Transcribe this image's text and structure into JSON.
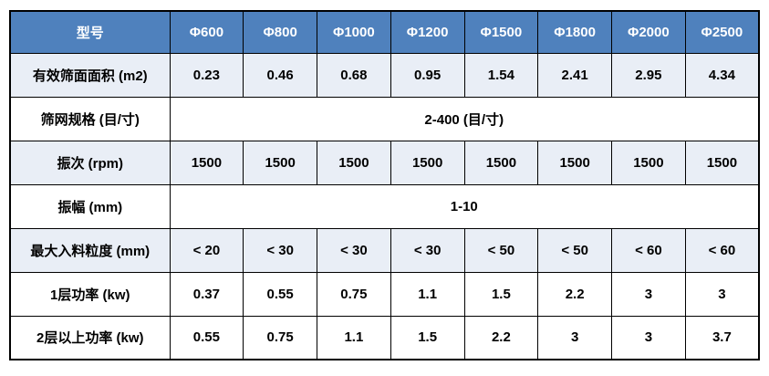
{
  "table": {
    "colors": {
      "header_bg": "#4f81bd",
      "header_text": "#ffffff",
      "shaded_row_bg": "#e9eef6",
      "row_bg": "#ffffff",
      "border": "#000000",
      "text": "#000000"
    },
    "header": {
      "model_label": "型号",
      "models": [
        "Φ600",
        "Φ800",
        "Φ1000",
        "Φ1200",
        "Φ1500",
        "Φ1800",
        "Φ2000",
        "Φ2500"
      ]
    },
    "rows": [
      {
        "label": "有效筛面面积 (m2)",
        "values": [
          "0.23",
          "0.46",
          "0.68",
          "0.95",
          "1.54",
          "2.41",
          "2.95",
          "4.34"
        ]
      },
      {
        "label": "筛网规格 (目/寸)",
        "span_value": "2-400 (目/寸)"
      },
      {
        "label": "振次 (rpm)",
        "values": [
          "1500",
          "1500",
          "1500",
          "1500",
          "1500",
          "1500",
          "1500",
          "1500"
        ]
      },
      {
        "label": "振幅 (mm)",
        "span_value": "1-10"
      },
      {
        "label": "最大入料粒度 (mm)",
        "values": [
          "< 20",
          "< 30",
          "< 30",
          "< 30",
          "< 50",
          "< 50",
          "< 60",
          "< 60"
        ]
      },
      {
        "label": "1层功率 (kw)",
        "values": [
          "0.37",
          "0.55",
          "0.75",
          "1.1",
          "1.5",
          "2.2",
          "3",
          "3"
        ]
      },
      {
        "label": "2层以上功率 (kw)",
        "values": [
          "0.55",
          "0.75",
          "1.1",
          "1.5",
          "2.2",
          "3",
          "3",
          "3.7"
        ]
      }
    ]
  }
}
